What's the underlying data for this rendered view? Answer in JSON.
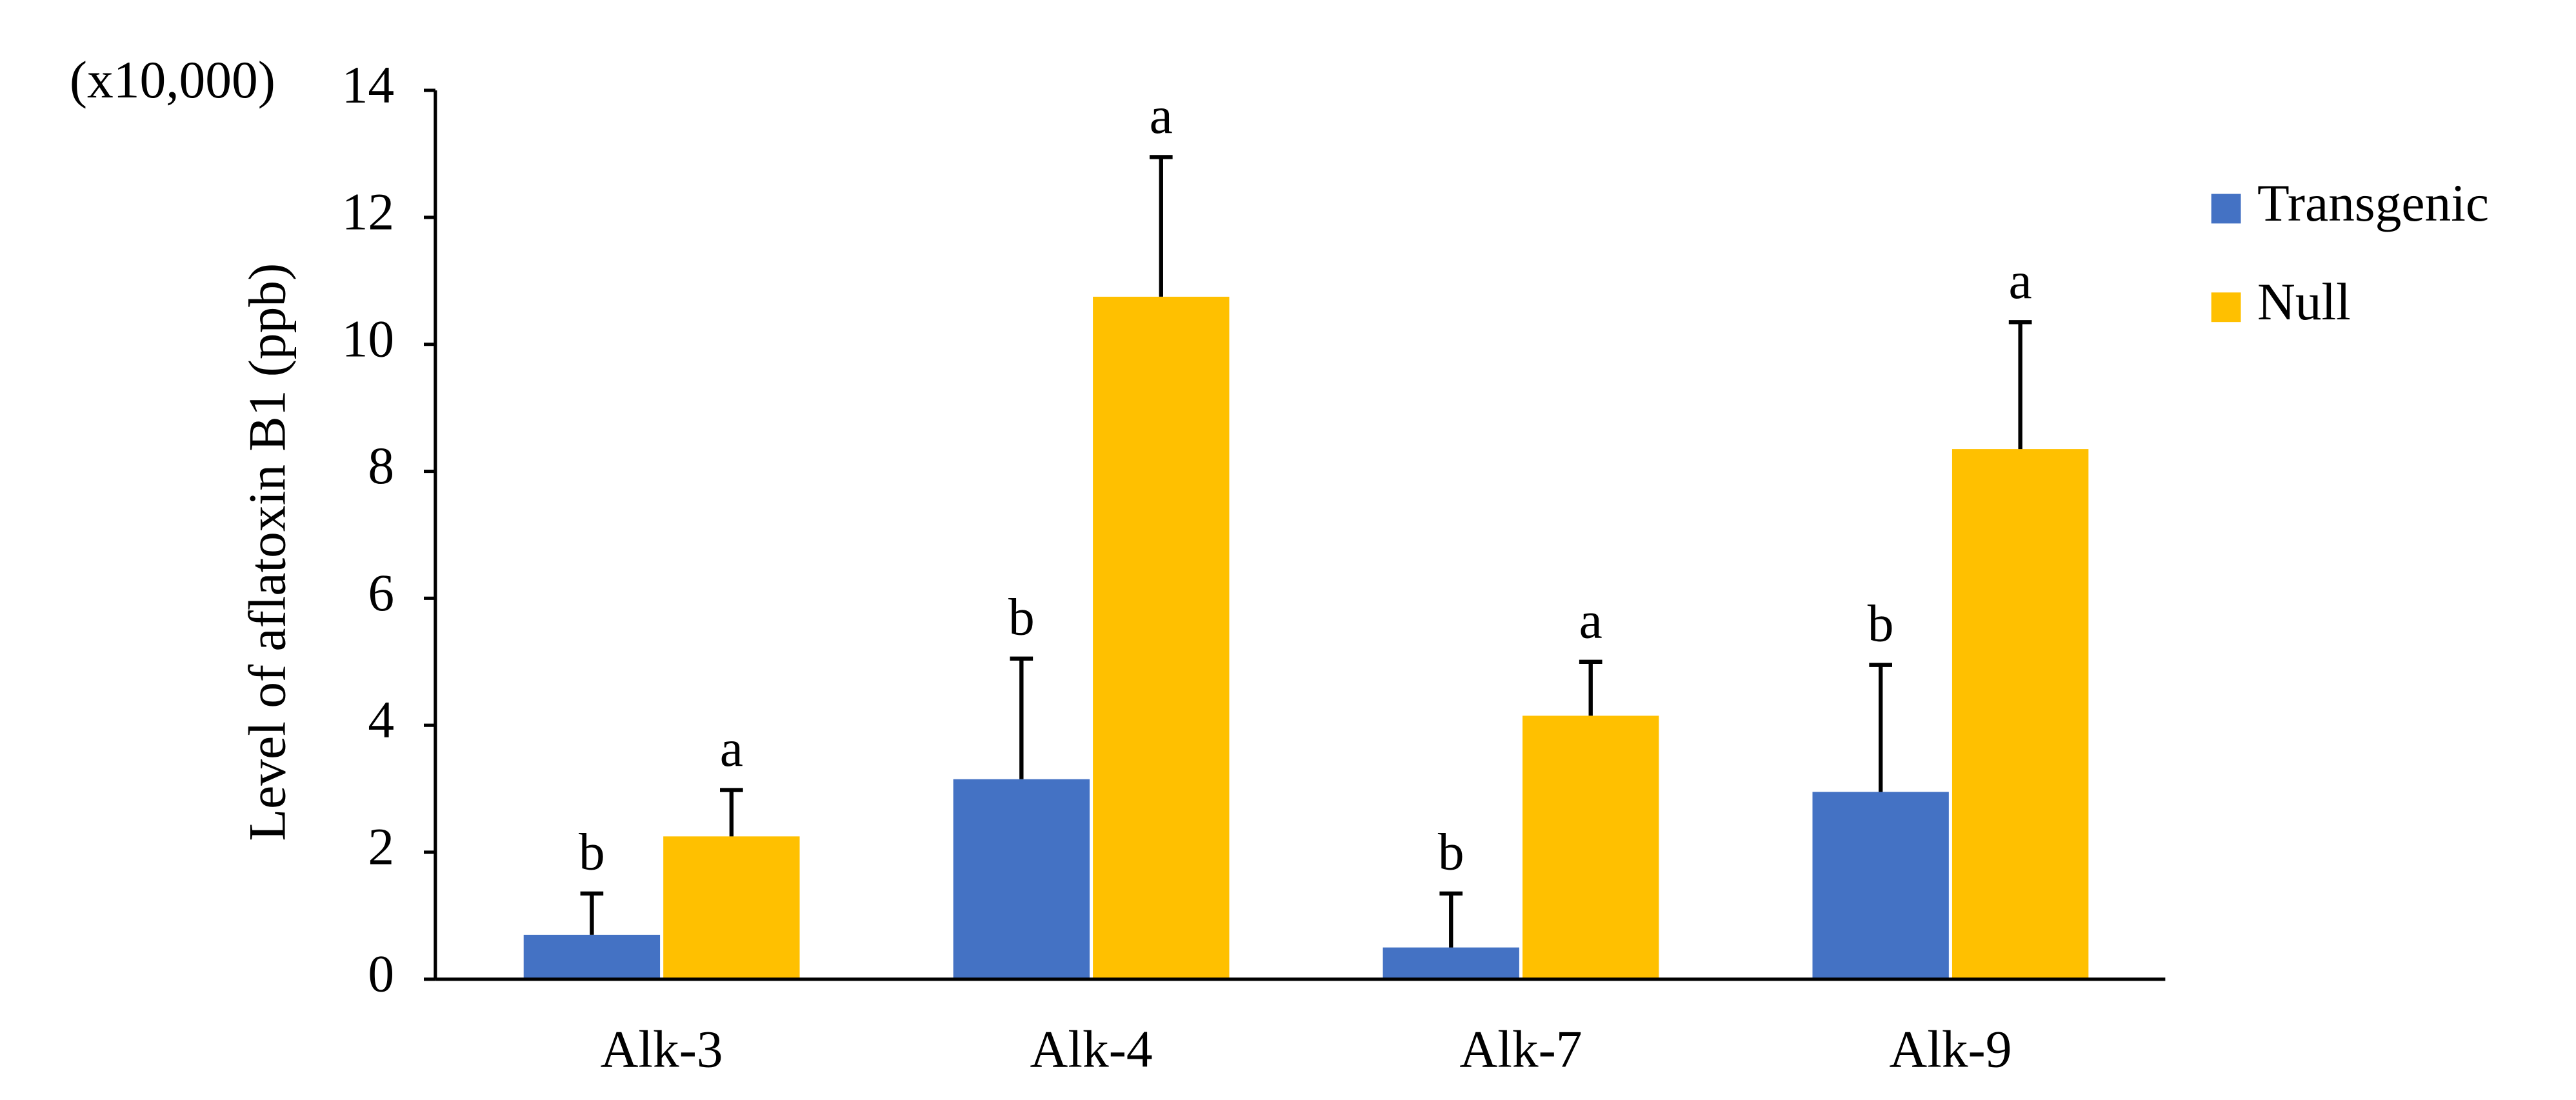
{
  "chart_data": {
    "type": "bar",
    "y_unit_label": "(x10,000)",
    "y_label": "Level of aflatoxin B1 (ppb)",
    "categories": [
      "Alk-3",
      "Alk-4",
      "Alk-7",
      "Alk-9"
    ],
    "series": [
      {
        "name": "Transgenic",
        "color": "#4472c4",
        "values": [
          0.7,
          3.15,
          0.5,
          2.95
        ],
        "errors": [
          0.65,
          1.9,
          0.85,
          2.0
        ],
        "letters": [
          "b",
          "b",
          "b",
          "b"
        ]
      },
      {
        "name": "Null",
        "color": "#ffc000",
        "values": [
          2.25,
          10.75,
          4.15,
          8.35
        ],
        "errors": [
          0.73,
          2.2,
          0.85,
          2.0
        ],
        "letters": [
          "a",
          "a",
          "a",
          "a"
        ]
      }
    ],
    "ylim": [
      0,
      14
    ],
    "yticks": [
      0,
      2,
      4,
      6,
      8,
      10,
      12,
      14
    ],
    "legend": "right"
  }
}
